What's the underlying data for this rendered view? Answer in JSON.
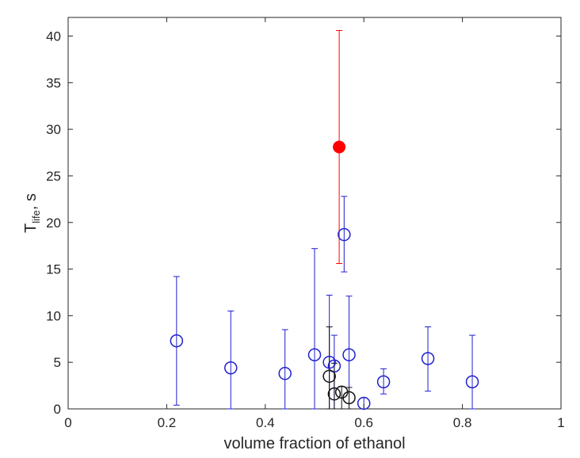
{
  "chart_data": {
    "type": "scatter",
    "xlabel": "volume fraction of ethanol",
    "ylabel_main": "T",
    "ylabel_sub": "life",
    "ylabel_tail": ", s",
    "xlim": [
      0,
      1
    ],
    "ylim": [
      0,
      42
    ],
    "xticks": [
      "0",
      "0.2",
      "0.4",
      "0.6",
      "0.8",
      "1"
    ],
    "xtick_values": [
      0,
      0.2,
      0.4,
      0.6,
      0.8,
      1
    ],
    "yticks": [
      "0",
      "5",
      "10",
      "15",
      "20",
      "25",
      "30",
      "35",
      "40"
    ],
    "ytick_values": [
      0,
      5,
      10,
      15,
      20,
      25,
      30,
      35,
      40
    ],
    "grid": false,
    "series": [
      {
        "marker": "open-circle",
        "color": "#1f1fd0",
        "points": [
          {
            "x": 0.22,
            "y": 7.3,
            "lo": 0.4,
            "hi": 14.2
          },
          {
            "x": 0.33,
            "y": 4.4,
            "lo": 0.0,
            "hi": 10.5
          },
          {
            "x": 0.44,
            "y": 3.8,
            "lo": 0.0,
            "hi": 8.5
          },
          {
            "x": 0.5,
            "y": 5.8,
            "lo": 0.0,
            "hi": 17.2
          },
          {
            "x": 0.53,
            "y": 5.0,
            "lo": 0.0,
            "hi": 12.2
          },
          {
            "x": 0.54,
            "y": 4.6,
            "lo": 0.0,
            "hi": 7.9
          },
          {
            "x": 0.56,
            "y": 18.7,
            "lo": 14.7,
            "hi": 22.8
          },
          {
            "x": 0.57,
            "y": 5.8,
            "lo": 0.0,
            "hi": 12.1
          },
          {
            "x": 0.6,
            "y": 0.6,
            "lo": 0.0,
            "hi": 1.2
          },
          {
            "x": 0.64,
            "y": 2.9,
            "lo": 1.6,
            "hi": 4.3
          },
          {
            "x": 0.73,
            "y": 5.4,
            "lo": 1.9,
            "hi": 8.8
          },
          {
            "x": 0.82,
            "y": 2.9,
            "lo": 0.0,
            "hi": 7.9
          }
        ]
      },
      {
        "marker": "open-circle",
        "color": "#111111",
        "points": [
          {
            "x": 0.53,
            "y": 3.5,
            "lo": 0.0,
            "hi": 8.8
          },
          {
            "x": 0.54,
            "y": 1.6,
            "lo": 0.0,
            "hi": 4.9
          },
          {
            "x": 0.555,
            "y": 1.8,
            "lo": 0.0,
            "hi": 2.4
          },
          {
            "x": 0.57,
            "y": 1.2,
            "lo": 0.0,
            "hi": 2.3
          }
        ]
      },
      {
        "marker": "filled-circle",
        "color": "#ff0000",
        "points": [
          {
            "x": 0.55,
            "y": 28.1,
            "lo": 15.6,
            "hi": 40.6
          }
        ]
      }
    ]
  }
}
